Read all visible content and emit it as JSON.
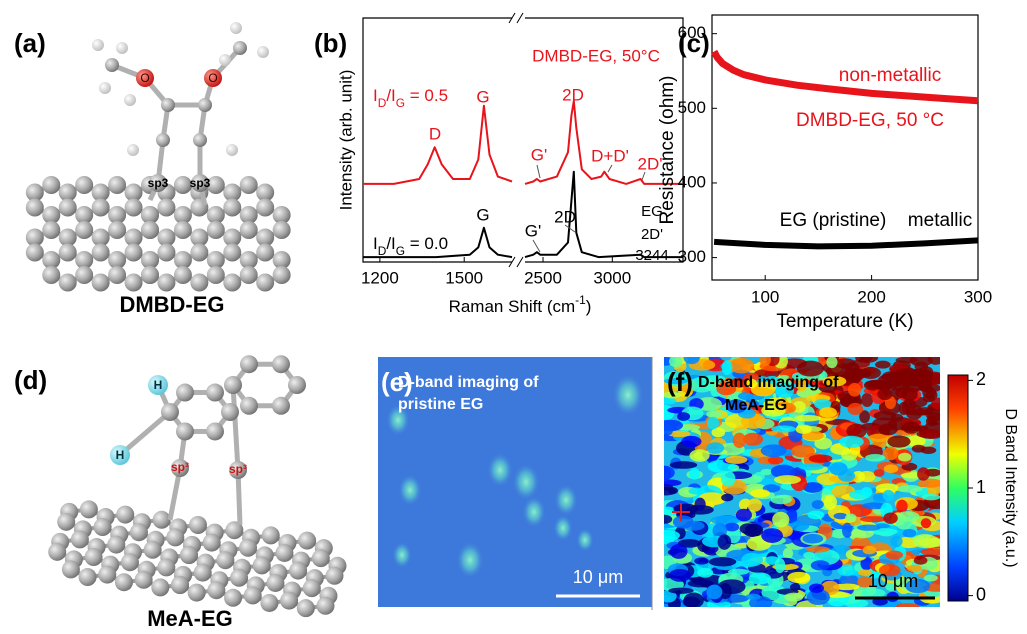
{
  "figure": {
    "panels": [
      {
        "label": "(a)",
        "caption": "DMBD-EG",
        "atoms": [
          "O",
          "O",
          "sp3",
          "sp3"
        ]
      },
      {
        "label": "(b)"
      },
      {
        "label": "(c)"
      },
      {
        "label": "(d)",
        "caption": "MeA-EG",
        "atoms": [
          "H",
          "H",
          "sp³",
          "sp³"
        ]
      },
      {
        "label": "(e)",
        "title": [
          "D-band  imaging of",
          "pristine EG"
        ],
        "scale_bar": "10 μm"
      },
      {
        "label": "(f)",
        "title": [
          "D-band imaging of",
          "MeA-EG"
        ],
        "scale_bar": "10 μm",
        "colorbar": {
          "label": "D Band Intensity (a.u.)",
          "lim": [
            -0.05,
            2.05
          ],
          "ticks": [
            0,
            1,
            2
          ]
        }
      }
    ]
  },
  "chart_data": [
    {
      "type": "line",
      "y_label": "Intensity (arb. unit)",
      "x_label_parts": [
        "Raman Shift (cm",
        "-1",
        ")"
      ],
      "x_segments": [
        [
          1140,
          1670
        ],
        [
          2370,
          3510
        ]
      ],
      "xticks": [
        1200,
        1500,
        2500,
        3000
      ],
      "ylim": [
        0,
        100
      ],
      "series": [
        {
          "color": "#e8141c",
          "x": [
            1140,
            1250,
            1340,
            1370,
            1395,
            1420,
            1460,
            1520,
            1550,
            1570,
            1590,
            1620,
            1670,
            2000,
            2370,
            2430,
            2456,
            2480,
            2600,
            2680,
            2705,
            2722,
            2740,
            2780,
            2850,
            2920,
            2942,
            2980,
            3100,
            3203,
            3230,
            3350,
            3510
          ],
          "values": [
            32,
            32,
            34,
            40,
            47,
            40,
            34,
            34,
            42,
            64,
            44,
            35,
            33,
            null,
            32,
            33,
            34,
            33,
            35,
            45,
            60,
            66,
            55,
            38,
            34,
            35,
            37,
            34,
            32,
            34,
            32,
            32,
            32
          ],
          "ratio_parts": [
            "I",
            "D",
            "/I",
            "G",
            " = 0.5"
          ],
          "annotations": [
            "D",
            "G",
            "G'",
            "2D",
            "D+D'",
            "2D'",
            "DMBD-EG, 50°C"
          ]
        },
        {
          "color": "#000000",
          "x": [
            1140,
            1400,
            1520,
            1550,
            1570,
            1590,
            1620,
            1670,
            2000,
            2370,
            2430,
            2456,
            2480,
            2600,
            2680,
            2705,
            2722,
            2740,
            2780,
            2900,
            3203,
            3230,
            3510
          ],
          "values": [
            2,
            2,
            3,
            6,
            14,
            6,
            3,
            2,
            null,
            2,
            3,
            4,
            3,
            3,
            8,
            25,
            37,
            12,
            4,
            2,
            3,
            2,
            2
          ],
          "ratio_parts": [
            "I",
            "D",
            "/I",
            "G",
            " = 0.0"
          ],
          "annotations": [
            "G",
            "G'",
            "2D",
            "EG",
            "2D'",
            "3244"
          ]
        }
      ]
    },
    {
      "type": "line",
      "x_label": "Temperature (K)",
      "y_label": "Resistance (ohm)",
      "xlim": [
        50,
        300
      ],
      "ylim": [
        270,
        625
      ],
      "xticks": [
        100,
        200,
        300
      ],
      "yticks": [
        300,
        400,
        500,
        600
      ],
      "series": [
        {
          "color": "#e8141c",
          "x": [
            52,
            55,
            60,
            70,
            80,
            100,
            130,
            160,
            200,
            240,
            270,
            300
          ],
          "values": [
            576,
            568,
            560,
            551,
            545,
            538,
            531,
            526,
            520,
            516,
            513,
            510
          ],
          "annotations": [
            "non-metallic",
            "DMBD-EG, 50 °C"
          ]
        },
        {
          "color": "#000000",
          "x": [
            52,
            100,
            150,
            200,
            250,
            300
          ],
          "values": [
            321,
            317,
            315,
            316,
            319,
            323
          ],
          "annotations": [
            "EG (pristine)",
            "metallic"
          ]
        }
      ]
    }
  ]
}
